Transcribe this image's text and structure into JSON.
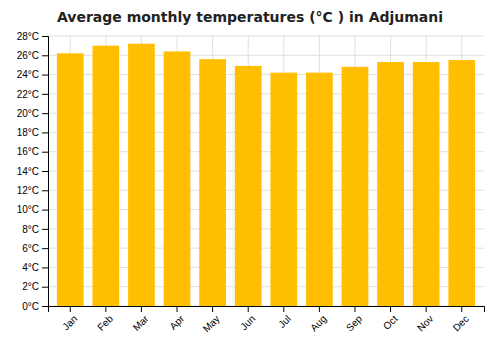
{
  "chart_data": {
    "type": "bar",
    "title": "Average monthly temperatures (°C ) in Adjumani",
    "categories": [
      "Jan",
      "Feb",
      "Mar",
      "Apr",
      "May",
      "Jun",
      "Jul",
      "Aug",
      "Sep",
      "Oct",
      "Nov",
      "Dec"
    ],
    "values": [
      26.2,
      27.0,
      27.2,
      26.4,
      25.6,
      24.9,
      24.2,
      24.2,
      24.8,
      25.3,
      25.3,
      25.5
    ],
    "color": "#FFBE00",
    "ylim": [
      0,
      28
    ],
    "yticks": [
      {
        "value": 0,
        "label": "0°C"
      },
      {
        "value": 2,
        "label": "2°C"
      },
      {
        "value": 4,
        "label": "4°C"
      },
      {
        "value": 6,
        "label": "6°C"
      },
      {
        "value": 8,
        "label": "8°C"
      },
      {
        "value": 10,
        "label": "10°C"
      },
      {
        "value": 12,
        "label": "12°C"
      },
      {
        "value": 14,
        "label": "14°C"
      },
      {
        "value": 16,
        "label": "16°C"
      },
      {
        "value": 18,
        "label": "18°C"
      },
      {
        "value": 20,
        "label": "20°C"
      },
      {
        "value": 22,
        "label": "22°C"
      },
      {
        "value": 24,
        "label": "24°C"
      },
      {
        "value": 26,
        "label": "26°C"
      },
      {
        "value": 28,
        "label": "28°C"
      }
    ],
    "grid": true
  }
}
